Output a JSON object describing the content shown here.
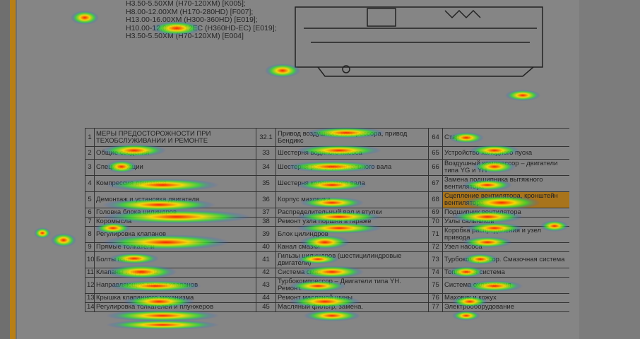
{
  "header": {
    "models": [
      "H3.50-5.50XM (H70-120XM) [K005];",
      "H8.00-12.00XM (H170-280HD) [F007];",
      "H13.00-16.00XM (H300-360HD) [E019];",
      "H10.00-12.00XM-12EC (H360HD-EC) [E019];",
      "H3.50-5.50XM (H70-120XM) [E004]"
    ]
  },
  "table": {
    "rows": [
      [
        "1",
        "МЕРЫ ПРЕДОСТОРОЖНОСТИ ПРИ ТЕХОБСЛУЖИВАНИИ И РЕМОНТЕ",
        "32.1",
        "Привод воздушного компрессора, привод Бендикс",
        "64",
        "Стартер"
      ],
      [
        "2",
        "Общие сведения",
        "33",
        "Шестерня водяного насоса",
        "65",
        "Устройство холодного пуска"
      ],
      [
        "3",
        "Спецификации",
        "34",
        "Шестерня распределительного вала",
        "66",
        "Воздушный компрессор – двигатели типа YG и YH"
      ],
      [
        "4",
        "Компрессия двигателя",
        "35",
        "Шестерня коленчатого вала",
        "67",
        "Замена подшипника вытяжного вентилятора"
      ],
      [
        "5",
        "Демонтаж и установка двигателя",
        "36",
        "Корпус маховика",
        "68",
        "Сцепление вентилятора, кронштейн вентилятора"
      ],
      [
        "6",
        "Головка блока цилиндров",
        "37",
        "Распределительный вал и втулки",
        "69",
        "Подшипник вентилятора"
      ],
      [
        "7",
        "Коромысла",
        "38",
        "Ремонт узла поршня в гараже",
        "70",
        "Узлы сальников"
      ],
      [
        "8",
        "Регулировка клапанов",
        "39",
        "Блок цилиндров",
        "71",
        "Коробка распределения и узел привода"
      ],
      [
        "9",
        "Прямые толкатели",
        "40",
        "Канал смазки",
        "72",
        "Узел насоса"
      ],
      [
        "10",
        "Болты головки",
        "41",
        "Гильзы цилиндров (шестицилиндровые двигатели)",
        "73",
        "Турбокомпрессор. Смазочная система"
      ],
      [
        "11",
        "Клапаны и пружины",
        "42",
        "Система смазки",
        "74",
        "Топливная система"
      ],
      [
        "12",
        "Направляющие втулки клапанов",
        "43",
        "Турбокомпрессор – Двигатели типа YH. Ремонт.",
        "75",
        "Система охлаждения"
      ],
      [
        "13",
        "Крышка клапанного механизма",
        "44",
        "Ремонт масляной шины",
        "76",
        "Маховик и кожух"
      ],
      [
        "14",
        "Регулировка толкателей и плунжеров",
        "45",
        "Масляный фильтр, замена.",
        "77",
        "Электрооборудование"
      ]
    ]
  }
}
